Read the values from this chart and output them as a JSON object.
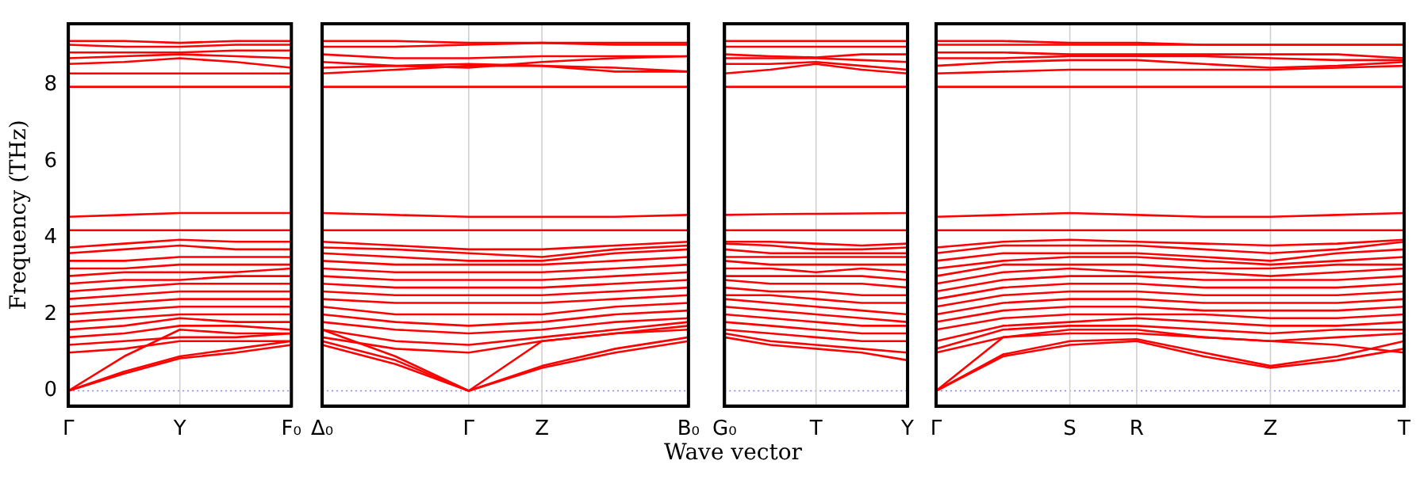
{
  "chart_data": [
    {
      "type": "line",
      "ylabel": "Frequency (THz)",
      "color": "#ff0000",
      "marker": "none",
      "line_style": "solid",
      "categories": [
        "Γ",
        null,
        "Y",
        null,
        "F₀"
      ],
      "ylim": [
        -0.4,
        9.6
      ],
      "yticks": [
        0,
        2,
        4,
        6,
        8
      ],
      "ref_lines": [
        {
          "axis": "y",
          "value": 0,
          "color": "#8080ff",
          "line_style": "dotted"
        },
        {
          "axis": "x",
          "value": "Y",
          "color": "#d0d0d0",
          "line_style": "solid"
        }
      ],
      "series": [
        {
          "values": [
            0,
            0.45,
            0.85,
            1.0,
            1.2
          ]
        },
        {
          "values": [
            0,
            0.5,
            0.9,
            1.1,
            1.3
          ]
        },
        {
          "values": [
            0,
            0.9,
            1.6,
            1.5,
            1.5
          ]
        },
        {
          "values": [
            1.0,
            1.1,
            1.3,
            1.3,
            1.3
          ]
        },
        {
          "values": [
            1.2,
            1.3,
            1.4,
            1.4,
            1.5
          ]
        },
        {
          "values": [
            1.4,
            1.5,
            1.7,
            1.7,
            1.6
          ]
        },
        {
          "values": [
            1.6,
            1.7,
            1.9,
            1.8,
            1.8
          ]
        },
        {
          "values": [
            1.8,
            1.9,
            2.0,
            2.0,
            2.0
          ]
        },
        {
          "values": [
            2.0,
            2.1,
            2.2,
            2.2,
            2.2
          ]
        },
        {
          "values": [
            2.2,
            2.3,
            2.4,
            2.4,
            2.4
          ]
        },
        {
          "values": [
            2.4,
            2.5,
            2.6,
            2.6,
            2.6
          ]
        },
        {
          "values": [
            2.6,
            2.7,
            2.8,
            2.8,
            2.8
          ]
        },
        {
          "values": [
            2.8,
            2.9,
            2.9,
            3.0,
            3.0
          ]
        },
        {
          "values": [
            3.0,
            3.1,
            3.1,
            3.1,
            3.2
          ]
        },
        {
          "values": [
            3.2,
            3.2,
            3.3,
            3.3,
            3.3
          ]
        },
        {
          "values": [
            3.4,
            3.4,
            3.5,
            3.5,
            3.5
          ]
        },
        {
          "values": [
            3.6,
            3.7,
            3.8,
            3.7,
            3.7
          ]
        },
        {
          "values": [
            3.75,
            3.85,
            3.95,
            3.9,
            3.9
          ]
        },
        {
          "values": [
            4.2,
            4.2,
            4.2,
            4.2,
            4.2
          ]
        },
        {
          "values": [
            4.55,
            4.6,
            4.65,
            4.65,
            4.65
          ]
        },
        {
          "values": [
            7.95,
            7.95,
            7.95,
            7.95,
            7.95
          ]
        },
        {
          "values": [
            8.3,
            8.3,
            8.3,
            8.3,
            8.3
          ]
        },
        {
          "values": [
            8.55,
            8.6,
            8.7,
            8.6,
            8.45
          ]
        },
        {
          "values": [
            8.7,
            8.75,
            8.8,
            8.75,
            8.7
          ]
        },
        {
          "values": [
            8.85,
            8.85,
            8.85,
            8.9,
            8.9
          ]
        },
        {
          "values": [
            9.05,
            9.0,
            9.0,
            9.05,
            9.05
          ]
        },
        {
          "values": [
            9.15,
            9.15,
            9.1,
            9.15,
            9.15
          ]
        }
      ]
    },
    {
      "type": "line",
      "color": "#ff0000",
      "marker": "none",
      "line_style": "solid",
      "tick_labels": "x",
      "categories": [
        "Δ₀",
        null,
        "Γ",
        "Z",
        null,
        "B₀"
      ],
      "ylim": [
        -0.4,
        9.6
      ],
      "yticks": [
        0,
        2,
        4,
        6,
        8
      ],
      "ref_lines": [
        {
          "axis": "y",
          "value": 0,
          "color": "#8080ff",
          "line_style": "dotted"
        },
        {
          "axis": "x",
          "value": "Γ",
          "color": "#d0d0d0",
          "line_style": "solid"
        },
        {
          "axis": "x",
          "value": "Z",
          "color": "#d0d0d0",
          "line_style": "solid"
        }
      ],
      "series": [
        {
          "values": [
            1.2,
            0.7,
            0,
            0.6,
            1.0,
            1.3
          ]
        },
        {
          "values": [
            1.3,
            0.8,
            0,
            0.65,
            1.1,
            1.4
          ]
        },
        {
          "values": [
            1.6,
            0.9,
            0,
            1.3,
            1.5,
            1.7
          ]
        },
        {
          "values": [
            1.4,
            1.1,
            1.0,
            1.3,
            1.5,
            1.6
          ]
        },
        {
          "values": [
            1.6,
            1.3,
            1.2,
            1.4,
            1.6,
            1.8
          ]
        },
        {
          "values": [
            1.8,
            1.6,
            1.5,
            1.6,
            1.8,
            1.9
          ]
        },
        {
          "values": [
            2.0,
            1.8,
            1.7,
            1.8,
            2.0,
            2.1
          ]
        },
        {
          "values": [
            2.2,
            2.0,
            2.0,
            2.0,
            2.2,
            2.3
          ]
        },
        {
          "values": [
            2.4,
            2.3,
            2.3,
            2.3,
            2.4,
            2.5
          ]
        },
        {
          "values": [
            2.6,
            2.5,
            2.5,
            2.5,
            2.6,
            2.7
          ]
        },
        {
          "values": [
            2.8,
            2.7,
            2.7,
            2.7,
            2.8,
            2.9
          ]
        },
        {
          "values": [
            3.0,
            2.9,
            2.9,
            2.9,
            3.0,
            3.1
          ]
        },
        {
          "values": [
            3.2,
            3.1,
            3.1,
            3.1,
            3.2,
            3.3
          ]
        },
        {
          "values": [
            3.4,
            3.3,
            3.3,
            3.3,
            3.4,
            3.5
          ]
        },
        {
          "values": [
            3.6,
            3.5,
            3.4,
            3.4,
            3.6,
            3.7
          ]
        },
        {
          "values": [
            3.75,
            3.7,
            3.6,
            3.5,
            3.7,
            3.8
          ]
        },
        {
          "values": [
            3.9,
            3.8,
            3.7,
            3.7,
            3.8,
            3.9
          ]
        },
        {
          "values": [
            4.2,
            4.2,
            4.2,
            4.2,
            4.2,
            4.2
          ]
        },
        {
          "values": [
            4.65,
            4.6,
            4.55,
            4.55,
            4.55,
            4.6
          ]
        },
        {
          "values": [
            7.95,
            7.95,
            7.95,
            7.95,
            7.95,
            7.95
          ]
        },
        {
          "values": [
            8.3,
            8.4,
            8.5,
            8.5,
            8.45,
            8.35
          ]
        },
        {
          "values": [
            8.45,
            8.5,
            8.55,
            8.5,
            8.35,
            8.35
          ]
        },
        {
          "values": [
            8.6,
            8.5,
            8.45,
            8.6,
            8.7,
            8.75
          ]
        },
        {
          "values": [
            8.8,
            8.7,
            8.7,
            8.75,
            8.75,
            8.75
          ]
        },
        {
          "values": [
            9.0,
            9.0,
            9.05,
            9.1,
            9.1,
            9.1
          ]
        },
        {
          "values": [
            9.15,
            9.15,
            9.1,
            9.1,
            9.05,
            9.05
          ]
        }
      ]
    },
    {
      "type": "line",
      "color": "#ff0000",
      "marker": "none",
      "line_style": "solid",
      "xlabel": "Wave vector",
      "tick_labels": "x",
      "categories": [
        "G₀",
        null,
        "T",
        null,
        "Y"
      ],
      "ylim": [
        -0.4,
        9.6
      ],
      "yticks": [
        0,
        2,
        4,
        6,
        8
      ],
      "ref_lines": [
        {
          "axis": "y",
          "value": 0,
          "color": "#8080ff",
          "line_style": "dotted"
        },
        {
          "axis": "x",
          "value": "T",
          "color": "#d0d0d0",
          "line_style": "solid"
        }
      ],
      "series": [
        {
          "values": [
            1.4,
            1.2,
            1.1,
            1.0,
            0.8
          ]
        },
        {
          "values": [
            1.5,
            1.3,
            1.2,
            1.1,
            1.0
          ]
        },
        {
          "values": [
            1.6,
            1.5,
            1.4,
            1.3,
            1.3
          ]
        },
        {
          "values": [
            1.8,
            1.7,
            1.6,
            1.5,
            1.5
          ]
        },
        {
          "values": [
            2.0,
            1.9,
            1.8,
            1.7,
            1.7
          ]
        },
        {
          "values": [
            2.2,
            2.1,
            2.0,
            1.9,
            1.8
          ]
        },
        {
          "values": [
            2.4,
            2.3,
            2.2,
            2.1,
            2.0
          ]
        },
        {
          "values": [
            2.5,
            2.5,
            2.4,
            2.3,
            2.3
          ]
        },
        {
          "values": [
            2.7,
            2.6,
            2.6,
            2.5,
            2.5
          ]
        },
        {
          "values": [
            2.9,
            2.8,
            2.8,
            2.8,
            2.7
          ]
        },
        {
          "values": [
            3.0,
            3.0,
            3.0,
            3.0,
            2.9
          ]
        },
        {
          "values": [
            3.2,
            3.2,
            3.1,
            3.2,
            3.1
          ]
        },
        {
          "values": [
            3.4,
            3.3,
            3.3,
            3.3,
            3.3
          ]
        },
        {
          "values": [
            3.5,
            3.5,
            3.5,
            3.5,
            3.5
          ]
        },
        {
          "values": [
            3.7,
            3.6,
            3.6,
            3.6,
            3.6
          ]
        },
        {
          "values": [
            3.85,
            3.8,
            3.7,
            3.7,
            3.75
          ]
        },
        {
          "values": [
            3.9,
            3.9,
            3.85,
            3.8,
            3.85
          ]
        },
        {
          "values": [
            4.2,
            4.2,
            4.2,
            4.2,
            4.2
          ]
        },
        {
          "values": [
            4.6,
            4.62,
            4.63,
            4.64,
            4.65
          ]
        },
        {
          "values": [
            7.95,
            7.95,
            7.95,
            7.95,
            7.95
          ]
        },
        {
          "values": [
            8.3,
            8.4,
            8.55,
            8.4,
            8.3
          ]
        },
        {
          "values": [
            8.55,
            8.55,
            8.6,
            8.5,
            8.4
          ]
        },
        {
          "values": [
            8.7,
            8.7,
            8.7,
            8.65,
            8.6
          ]
        },
        {
          "values": [
            8.8,
            8.75,
            8.72,
            8.8,
            8.8
          ]
        },
        {
          "values": [
            9.0,
            9.0,
            9.0,
            9.0,
            9.0
          ]
        },
        {
          "values": [
            9.15,
            9.15,
            9.15,
            9.15,
            9.15
          ]
        }
      ]
    },
    {
      "type": "line",
      "color": "#ff0000",
      "marker": "none",
      "line_style": "solid",
      "tick_labels": "x",
      "categories": [
        "Γ",
        null,
        "S",
        "R",
        null,
        "Z",
        null,
        "T"
      ],
      "ylim": [
        -0.4,
        9.6
      ],
      "yticks": [
        0,
        2,
        4,
        6,
        8
      ],
      "ref_lines": [
        {
          "axis": "y",
          "value": 0,
          "color": "#8080ff",
          "line_style": "dotted"
        },
        {
          "axis": "x",
          "value": "S",
          "color": "#d0d0d0",
          "line_style": "solid"
        },
        {
          "axis": "x",
          "value": "R",
          "color": "#d0d0d0",
          "line_style": "solid"
        },
        {
          "axis": "x",
          "value": "Z",
          "color": "#d0d0d0",
          "line_style": "solid"
        }
      ],
      "series": [
        {
          "values": [
            0,
            0.9,
            1.2,
            1.3,
            0.9,
            0.6,
            0.8,
            1.1
          ]
        },
        {
          "values": [
            0,
            0.95,
            1.3,
            1.35,
            1.0,
            0.65,
            0.9,
            1.3
          ]
        },
        {
          "values": [
            0,
            1.4,
            1.6,
            1.6,
            1.4,
            1.3,
            1.2,
            1.0
          ]
        },
        {
          "values": [
            1.0,
            1.4,
            1.5,
            1.5,
            1.4,
            1.3,
            1.4,
            1.5
          ]
        },
        {
          "values": [
            1.1,
            1.6,
            1.7,
            1.7,
            1.6,
            1.5,
            1.6,
            1.6
          ]
        },
        {
          "values": [
            1.3,
            1.7,
            1.8,
            1.9,
            1.8,
            1.7,
            1.7,
            1.8
          ]
        },
        {
          "values": [
            1.6,
            1.9,
            2.0,
            2.0,
            2.0,
            1.9,
            1.9,
            2.0
          ]
        },
        {
          "values": [
            1.8,
            2.1,
            2.2,
            2.2,
            2.1,
            2.1,
            2.1,
            2.2
          ]
        },
        {
          "values": [
            2.0,
            2.3,
            2.4,
            2.4,
            2.3,
            2.3,
            2.3,
            2.4
          ]
        },
        {
          "values": [
            2.2,
            2.5,
            2.6,
            2.6,
            2.5,
            2.5,
            2.5,
            2.6
          ]
        },
        {
          "values": [
            2.4,
            2.7,
            2.8,
            2.8,
            2.7,
            2.7,
            2.7,
            2.8
          ]
        },
        {
          "values": [
            2.6,
            2.9,
            3.0,
            3.0,
            2.9,
            2.9,
            2.9,
            3.0
          ]
        },
        {
          "values": [
            2.8,
            3.1,
            3.2,
            3.1,
            3.1,
            3.0,
            3.1,
            3.2
          ]
        },
        {
          "values": [
            3.0,
            3.3,
            3.3,
            3.3,
            3.2,
            3.2,
            3.3,
            3.3
          ]
        },
        {
          "values": [
            3.2,
            3.4,
            3.5,
            3.5,
            3.4,
            3.3,
            3.4,
            3.5
          ]
        },
        {
          "values": [
            3.4,
            3.6,
            3.6,
            3.6,
            3.5,
            3.4,
            3.6,
            3.7
          ]
        },
        {
          "values": [
            3.6,
            3.8,
            3.8,
            3.8,
            3.7,
            3.6,
            3.7,
            3.9
          ]
        },
        {
          "values": [
            3.75,
            3.9,
            3.95,
            3.9,
            3.85,
            3.8,
            3.85,
            3.95
          ]
        },
        {
          "values": [
            4.2,
            4.2,
            4.2,
            4.2,
            4.2,
            4.2,
            4.2,
            4.2
          ]
        },
        {
          "values": [
            4.55,
            4.6,
            4.65,
            4.6,
            4.55,
            4.55,
            4.6,
            4.65
          ]
        },
        {
          "values": [
            7.95,
            7.95,
            7.95,
            7.95,
            7.95,
            7.95,
            7.95,
            7.95
          ]
        },
        {
          "values": [
            8.3,
            8.35,
            8.4,
            8.4,
            8.4,
            8.4,
            8.45,
            8.5
          ]
        },
        {
          "values": [
            8.5,
            8.6,
            8.65,
            8.65,
            8.55,
            8.45,
            8.5,
            8.6
          ]
        },
        {
          "values": [
            8.7,
            8.7,
            8.75,
            8.75,
            8.75,
            8.7,
            8.65,
            8.65
          ]
        },
        {
          "values": [
            8.85,
            8.85,
            8.8,
            8.8,
            8.8,
            8.8,
            8.8,
            8.7
          ]
        },
        {
          "values": [
            9.05,
            9.05,
            9.05,
            9.05,
            9.05,
            9.05,
            9.05,
            9.05
          ]
        },
        {
          "values": [
            9.15,
            9.15,
            9.1,
            9.1,
            9.05,
            9.05,
            9.05,
            9.05
          ]
        }
      ]
    }
  ]
}
